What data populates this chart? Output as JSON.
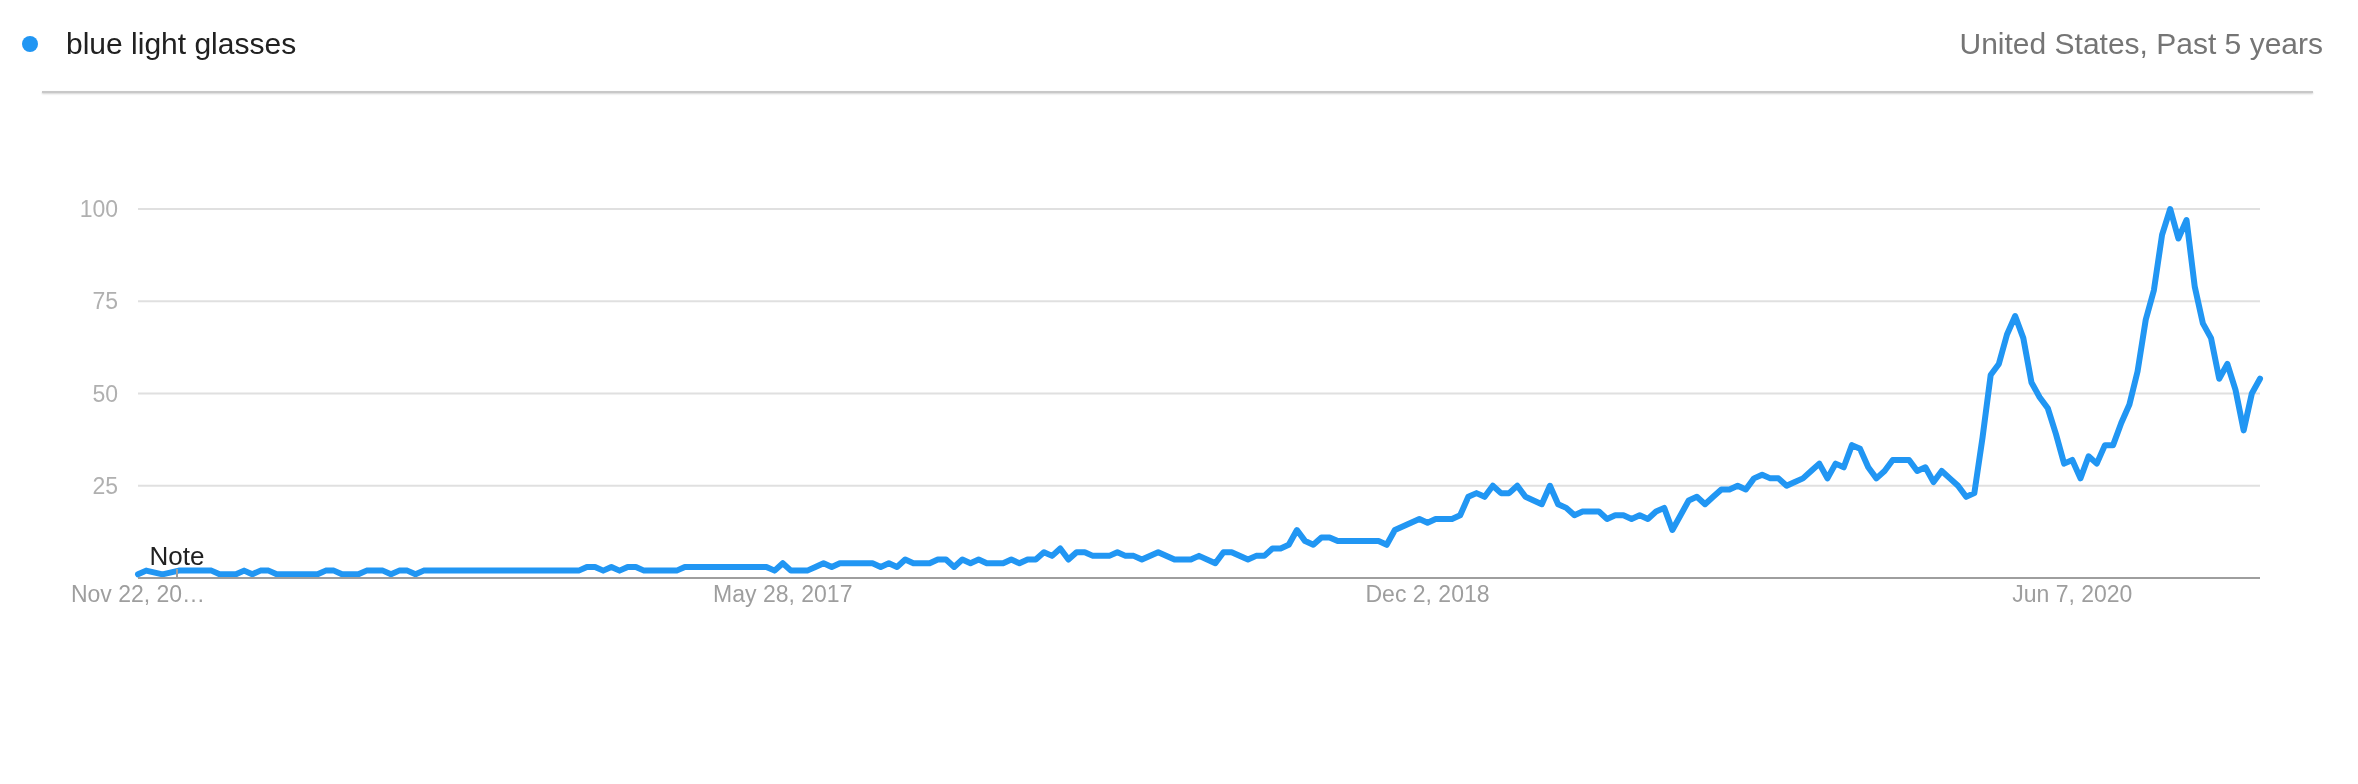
{
  "chart_data": {
    "type": "line",
    "subtitle": "United States, Past 5 years",
    "x": [
      "2015-11-22",
      "2015-11-29",
      "2015-12-13",
      "2015-12-27",
      "2016-01-24",
      "2016-01-31",
      "2016-02-14",
      "2016-02-21",
      "2016-02-28",
      "2016-03-06",
      "2016-03-13",
      "2016-03-20",
      "2016-04-24",
      "2016-05-01",
      "2016-05-08",
      "2016-05-15",
      "2016-05-29",
      "2016-06-05",
      "2016-06-19",
      "2016-06-26",
      "2016-07-03",
      "2016-07-10",
      "2016-07-17",
      "2016-07-24",
      "2016-12-04",
      "2016-12-11",
      "2016-12-18",
      "2016-12-25",
      "2017-01-01",
      "2017-01-08",
      "2017-01-15",
      "2017-01-22",
      "2017-01-29",
      "2017-02-26",
      "2017-03-05",
      "2017-05-14",
      "2017-05-21",
      "2017-05-28",
      "2017-06-04",
      "2017-06-18",
      "2017-06-25",
      "2017-07-02",
      "2017-07-09",
      "2017-07-16",
      "2017-08-13",
      "2017-08-20",
      "2017-08-27",
      "2017-09-03",
      "2017-09-10",
      "2017-09-17",
      "2017-10-01",
      "2017-10-08",
      "2017-10-15",
      "2017-10-22",
      "2017-10-29",
      "2017-11-05",
      "2017-11-12",
      "2017-11-19",
      "2017-12-03",
      "2017-12-10",
      "2017-12-17",
      "2017-12-24",
      "2017-12-31",
      "2018-01-07",
      "2018-01-14",
      "2018-01-21",
      "2018-01-28",
      "2018-02-04",
      "2018-02-11",
      "2018-02-18",
      "2018-03-04",
      "2018-03-11",
      "2018-03-18",
      "2018-03-25",
      "2018-04-01",
      "2018-04-15",
      "2018-04-29",
      "2018-05-13",
      "2018-05-20",
      "2018-06-03",
      "2018-06-10",
      "2018-06-17",
      "2018-07-01",
      "2018-07-08",
      "2018-07-15",
      "2018-07-22",
      "2018-07-29",
      "2018-08-05",
      "2018-08-12",
      "2018-08-19",
      "2018-08-26",
      "2018-09-02",
      "2018-09-09",
      "2018-09-16",
      "2018-10-21",
      "2018-10-28",
      "2018-11-04",
      "2018-11-25",
      "2018-12-02",
      "2018-12-09",
      "2018-12-23",
      "2018-12-30",
      "2019-01-06",
      "2019-01-13",
      "2019-01-20",
      "2019-01-27",
      "2019-02-03",
      "2019-02-10",
      "2019-02-17",
      "2019-02-24",
      "2019-03-10",
      "2019-03-17",
      "2019-03-24",
      "2019-03-31",
      "2019-04-07",
      "2019-04-14",
      "2019-04-28",
      "2019-05-05",
      "2019-05-12",
      "2019-05-19",
      "2019-05-26",
      "2019-06-02",
      "2019-06-09",
      "2019-06-16",
      "2019-06-23",
      "2019-06-30",
      "2019-07-14",
      "2019-07-21",
      "2019-07-28",
      "2019-08-04",
      "2019-08-11",
      "2019-08-18",
      "2019-08-25",
      "2019-09-01",
      "2019-09-08",
      "2019-09-15",
      "2019-09-22",
      "2019-09-29",
      "2019-10-06",
      "2019-10-13",
      "2019-10-20",
      "2019-10-27",
      "2019-11-03",
      "2019-11-10",
      "2019-11-17",
      "2019-11-24",
      "2019-12-01",
      "2019-12-08",
      "2019-12-15",
      "2019-12-22",
      "2019-12-29",
      "2020-01-05",
      "2020-01-19",
      "2020-01-26",
      "2020-02-02",
      "2020-02-09",
      "2020-02-16",
      "2020-02-23",
      "2020-03-01",
      "2020-03-08",
      "2020-03-15",
      "2020-03-22",
      "2020-03-29",
      "2020-04-05",
      "2020-04-12",
      "2020-04-19",
      "2020-04-26",
      "2020-05-03",
      "2020-05-10",
      "2020-05-17",
      "2020-05-24",
      "2020-05-31",
      "2020-06-07",
      "2020-06-14",
      "2020-06-21",
      "2020-06-28",
      "2020-07-05",
      "2020-07-12",
      "2020-07-19",
      "2020-07-26",
      "2020-08-02",
      "2020-08-09",
      "2020-08-16",
      "2020-08-23",
      "2020-08-30",
      "2020-09-06",
      "2020-09-13",
      "2020-09-20",
      "2020-09-27",
      "2020-10-04",
      "2020-10-11",
      "2020-10-18",
      "2020-10-25",
      "2020-11-01",
      "2020-11-08",
      "2020-11-15"
    ],
    "series": [
      {
        "name": "blue light glasses",
        "color": "#2196f3",
        "values": [
          1,
          2,
          1,
          2,
          2,
          1,
          1,
          2,
          1,
          2,
          2,
          1,
          1,
          2,
          2,
          1,
          1,
          2,
          2,
          1,
          2,
          2,
          1,
          2,
          2,
          3,
          3,
          2,
          3,
          2,
          3,
          3,
          2,
          2,
          3,
          3,
          2,
          4,
          2,
          2,
          3,
          4,
          3,
          4,
          4,
          3,
          4,
          3,
          5,
          4,
          4,
          5,
          5,
          3,
          5,
          4,
          5,
          4,
          4,
          5,
          4,
          5,
          5,
          7,
          6,
          8,
          5,
          7,
          7,
          6,
          6,
          7,
          6,
          6,
          5,
          7,
          5,
          5,
          6,
          4,
          7,
          7,
          5,
          6,
          6,
          8,
          8,
          9,
          13,
          10,
          9,
          11,
          11,
          10,
          10,
          9,
          13,
          16,
          15,
          16,
          16,
          17,
          22,
          23,
          22,
          25,
          23,
          23,
          25,
          22,
          20,
          25,
          20,
          19,
          17,
          18,
          18,
          16,
          17,
          17,
          16,
          17,
          16,
          18,
          19,
          13,
          21,
          22,
          20,
          22,
          24,
          24,
          25,
          24,
          27,
          28,
          27,
          27,
          25,
          26,
          27,
          29,
          31,
          27,
          31,
          30,
          36,
          35,
          30,
          27,
          29,
          32,
          32,
          29,
          30,
          26,
          29,
          27,
          25,
          22,
          23,
          38,
          55,
          58,
          66,
          71,
          65,
          53,
          49,
          46,
          39,
          31,
          32,
          27,
          33,
          31,
          36,
          36,
          42,
          47,
          56,
          70,
          78,
          93,
          100,
          92,
          97,
          79,
          69,
          65,
          54,
          58,
          51,
          40,
          50,
          54
        ]
      }
    ],
    "xlim": [
      "2015-11-22",
      "2020-11-15"
    ],
    "xticks": [
      {
        "value": "2015-11-22",
        "label": "Nov 22, 20…"
      },
      {
        "value": "2017-05-28",
        "label": "May 28, 2017"
      },
      {
        "value": "2018-12-02",
        "label": "Dec 2, 2018"
      },
      {
        "value": "2020-06-07",
        "label": "Jun 7, 2020"
      }
    ],
    "ylim": [
      0,
      100
    ],
    "yticks": [
      25,
      50,
      75,
      100
    ],
    "grid": "y",
    "legend": "top left",
    "annotations": [
      "Note"
    ]
  }
}
